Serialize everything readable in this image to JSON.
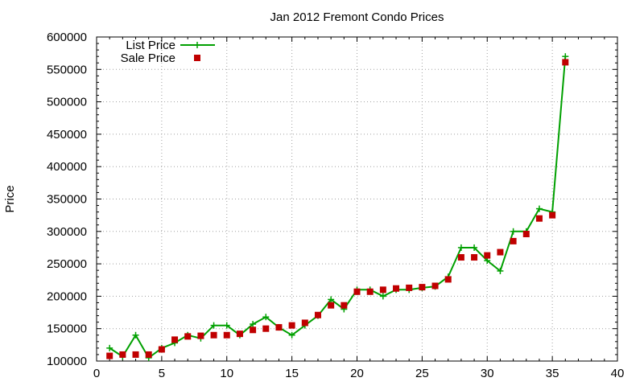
{
  "chart_data": {
    "type": "line",
    "title": "Jan 2012 Fremont Condo Prices",
    "xlabel": "",
    "ylabel": "Price",
    "xlim": [
      0,
      40
    ],
    "ylim": [
      100000,
      600000
    ],
    "x_ticks": [
      "0",
      "5",
      "10",
      "15",
      "20",
      "25",
      "30",
      "35",
      "40"
    ],
    "y_ticks": [
      "100000",
      "150000",
      "200000",
      "250000",
      "300000",
      "350000",
      "400000",
      "450000",
      "500000",
      "550000",
      "600000"
    ],
    "grid": true,
    "legend_position": "top-left",
    "series": [
      {
        "name": "List Price",
        "style": "line-with-plus-markers",
        "color": "#00a000",
        "x": [
          1,
          2,
          3,
          4,
          5,
          6,
          7,
          8,
          9,
          10,
          11,
          12,
          13,
          14,
          15,
          16,
          17,
          18,
          19,
          20,
          21,
          22,
          23,
          24,
          25,
          26,
          27,
          28,
          29,
          30,
          31,
          32,
          33,
          34,
          35,
          36
        ],
        "y": [
          120000,
          107000,
          140000,
          105000,
          120000,
          128000,
          140000,
          135000,
          155000,
          155000,
          140000,
          157000,
          168000,
          152000,
          140000,
          155000,
          170000,
          195000,
          180000,
          210000,
          210000,
          200000,
          210000,
          210000,
          213000,
          215000,
          230000,
          275000,
          275000,
          255000,
          239000,
          300000,
          300000,
          335000,
          330000,
          570000
        ]
      },
      {
        "name": "Sale Price",
        "style": "square-markers",
        "color": "#c00000",
        "x": [
          1,
          2,
          3,
          4,
          5,
          6,
          7,
          8,
          9,
          10,
          11,
          12,
          13,
          14,
          15,
          16,
          17,
          18,
          19,
          20,
          21,
          22,
          23,
          24,
          25,
          26,
          27,
          28,
          29,
          30,
          31,
          32,
          33,
          34,
          35,
          36
        ],
        "y": [
          108000,
          110000,
          110000,
          110000,
          118000,
          133000,
          138000,
          139000,
          140000,
          140000,
          142000,
          148000,
          150000,
          152000,
          155000,
          159000,
          171000,
          186000,
          186000,
          207000,
          207000,
          210000,
          212000,
          213000,
          214000,
          216000,
          226000,
          260000,
          260000,
          263000,
          268000,
          285000,
          296000,
          320000,
          325000,
          561000
        ]
      }
    ]
  }
}
